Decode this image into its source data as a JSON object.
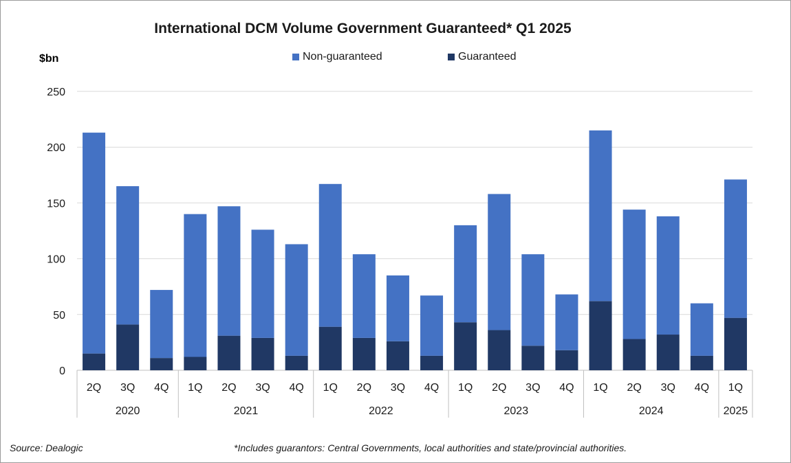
{
  "chart_data": {
    "type": "bar",
    "stacked": true,
    "title": "International DCM Volume Government Guaranteed* Q1 2025",
    "ylabel": "$bn",
    "ylim": [
      0,
      250
    ],
    "yticks": [
      0,
      50,
      100,
      150,
      200,
      250
    ],
    "grid": true,
    "legend_position": "top",
    "categories": [
      "2Q",
      "3Q",
      "4Q",
      "1Q",
      "2Q",
      "3Q",
      "4Q",
      "1Q",
      "2Q",
      "3Q",
      "4Q",
      "1Q",
      "2Q",
      "3Q",
      "4Q",
      "1Q",
      "2Q",
      "3Q",
      "4Q",
      "1Q"
    ],
    "years": [
      {
        "label": "2020",
        "count": 3
      },
      {
        "label": "2021",
        "count": 4
      },
      {
        "label": "2022",
        "count": 4
      },
      {
        "label": "2023",
        "count": 4
      },
      {
        "label": "2024",
        "count": 4
      },
      {
        "label": "2025",
        "count": 1
      }
    ],
    "series": [
      {
        "name": "Guaranteed",
        "color": "#203864",
        "values": [
          15,
          41,
          11,
          12,
          31,
          29,
          13,
          39,
          29,
          26,
          13,
          43,
          36,
          22,
          18,
          62,
          28,
          32,
          13,
          47
        ]
      },
      {
        "name": "Non-guaranteed",
        "color": "#4472c4",
        "values": [
          198,
          124,
          61,
          128,
          116,
          97,
          100,
          128,
          75,
          59,
          54,
          87,
          122,
          82,
          50,
          153,
          116,
          106,
          47,
          124
        ]
      }
    ],
    "totals": [
      213,
      165,
      72,
      140,
      147,
      126,
      113,
      167,
      104,
      85,
      67,
      130,
      158,
      104,
      68,
      215,
      144,
      138,
      60,
      171
    ]
  },
  "legend": {
    "non_guaranteed": "Non-guaranteed",
    "guaranteed": "Guaranteed"
  },
  "source": "Source: Dealogic",
  "footnote": "*Includes guarantors: Central Governments, local authorities and state/provincial authorities."
}
